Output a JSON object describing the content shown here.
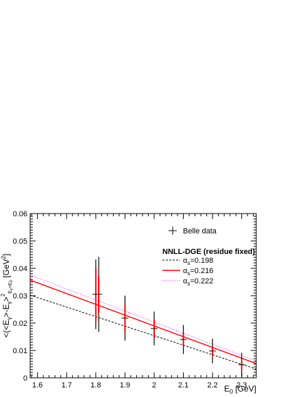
{
  "chart_data": {
    "type": "line",
    "xlabel_main": "E",
    "xlabel_sub": "0",
    "xlabel_unit": " [GeV]",
    "ylabel_text": "<(<E",
    "ylabel_sub1": "γ",
    "ylabel_mid": ">-E",
    "ylabel_sub2": "γ",
    "ylabel_sup": "2",
    "ylabel_after": ">",
    "ylabel_sub3": "E",
    "ylabel_sub3b": "γ",
    "ylabel_sub3c": ">E",
    "ylabel_sub3d": "0",
    "ylabel_unit": " [GeV",
    "ylabel_unit_sup": "2",
    "ylabel_unit_end": "]",
    "xlim": [
      1.575,
      2.35
    ],
    "ylim": [
      0,
      0.06
    ],
    "xticks": [
      "1.6",
      "1.7",
      "1.8",
      "1.9",
      "2",
      "2.1",
      "2.2",
      "2.3"
    ],
    "xtick_values": [
      1.6,
      1.7,
      1.8,
      1.9,
      2.0,
      2.1,
      2.2,
      2.3
    ],
    "yticks": [
      "0",
      "0.01",
      "0.02",
      "0.03",
      "0.04",
      "0.05",
      "0.06"
    ],
    "ytick_values": [
      0,
      0.01,
      0.02,
      0.03,
      0.04,
      0.05,
      0.06
    ],
    "data_series": {
      "name": "Belle data",
      "points": [
        {
          "x": 1.8,
          "y": 0.0305,
          "err_total": 0.0127,
          "err_stat": 0.0097
        },
        {
          "x": 1.81,
          "y": 0.0305,
          "err_total": 0.0137,
          "err_stat": 0.0067
        },
        {
          "x": 1.9,
          "y": 0.0218,
          "err_total": 0.0082,
          "err_stat": 0.005
        },
        {
          "x": 2.0,
          "y": 0.018,
          "err_total": 0.0062,
          "err_stat": 0.0033
        },
        {
          "x": 2.1,
          "y": 0.014,
          "err_total": 0.0053,
          "err_stat": 0.0022
        },
        {
          "x": 2.2,
          "y": 0.0098,
          "err_total": 0.0045,
          "err_stat": 0.0017
        },
        {
          "x": 2.3,
          "y": 0.0048,
          "err_total": 0.0043,
          "err_stat": 0.0015
        }
      ]
    },
    "legend_title": "NNLL-DGE (residue fixed)",
    "alpha_label": "α",
    "alpha_sub": "s",
    "theory_series": [
      {
        "name": "=0.198",
        "color": "#000000",
        "style": "dashed",
        "x": [
          1.575,
          2.35
        ],
        "y": [
          0.0302,
          0.0032
        ]
      },
      {
        "name": "=0.216",
        "color": "#ff0000",
        "style": "solid",
        "x": [
          1.575,
          2.35
        ],
        "y": [
          0.0357,
          0.0052
        ]
      },
      {
        "name": "=0.222",
        "color": "#ff00ff",
        "style": "dotted",
        "x": [
          1.575,
          2.35
        ],
        "y": [
          0.0375,
          0.0062
        ]
      }
    ],
    "grid": false,
    "legend_position": "top-right"
  }
}
